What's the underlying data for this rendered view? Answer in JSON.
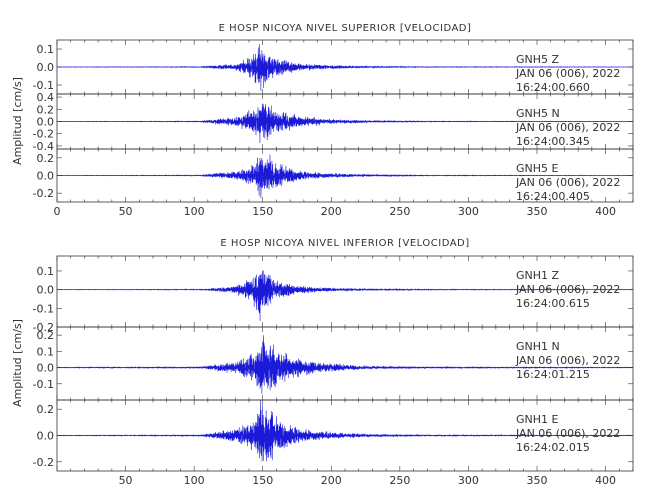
{
  "chart_data": [
    {
      "type": "line",
      "title": "E HOSP NICOYA NIVEL SUPERIOR [VELOCIDAD]",
      "ylabel": "Amplitud [cm/s]",
      "xlim": [
        0,
        420
      ],
      "x_ticks": [
        "0",
        "50",
        "100",
        "150",
        "200",
        "250",
        "300",
        "350",
        "400"
      ],
      "series": [
        {
          "channel": "GNH5  Z",
          "date": "JAN 06 (006), 2022",
          "time": "16:24:00.660",
          "color": "#1a1ad8",
          "ylim": [
            -0.15,
            0.15
          ],
          "y_ticks": [
            "0.1",
            "0.0",
            "-0.1"
          ],
          "y_tick_values": [
            0.1,
            0.0,
            -0.1
          ],
          "envelope": [
            {
              "t": 0,
              "a": 0.001
            },
            {
              "t": 105,
              "a": 0.002
            },
            {
              "t": 112,
              "a": 0.006
            },
            {
              "t": 130,
              "a": 0.02
            },
            {
              "t": 142,
              "a": 0.06
            },
            {
              "t": 148,
              "a": 0.15
            },
            {
              "t": 152,
              "a": 0.09
            },
            {
              "t": 160,
              "a": 0.05
            },
            {
              "t": 180,
              "a": 0.02
            },
            {
              "t": 200,
              "a": 0.01
            },
            {
              "t": 230,
              "a": 0.004
            },
            {
              "t": 270,
              "a": 0.002
            },
            {
              "t": 420,
              "a": 0.001
            }
          ]
        },
        {
          "channel": "GNH5  N",
          "date": "JAN 06 (006), 2022",
          "time": "16:24:00.345",
          "color": "#1a1ad8",
          "ylim": [
            -0.45,
            0.45
          ],
          "y_ticks": [
            "0.4",
            "0.2",
            "0.0",
            "-0.2",
            "-0.4"
          ],
          "y_tick_values": [
            0.4,
            0.2,
            0.0,
            -0.2,
            -0.4
          ],
          "envelope": [
            {
              "t": 0,
              "a": 0.003
            },
            {
              "t": 105,
              "a": 0.006
            },
            {
              "t": 112,
              "a": 0.03
            },
            {
              "t": 130,
              "a": 0.08
            },
            {
              "t": 145,
              "a": 0.2
            },
            {
              "t": 150,
              "a": 0.42
            },
            {
              "t": 155,
              "a": 0.3
            },
            {
              "t": 162,
              "a": 0.18
            },
            {
              "t": 180,
              "a": 0.08
            },
            {
              "t": 200,
              "a": 0.04
            },
            {
              "t": 230,
              "a": 0.015
            },
            {
              "t": 270,
              "a": 0.006
            },
            {
              "t": 420,
              "a": 0.003
            }
          ]
        },
        {
          "channel": "GNH5  E",
          "date": "JAN 06 (006), 2022",
          "time": "16:24:00.405",
          "color": "#1a1ad8",
          "ylim": [
            -0.3,
            0.3
          ],
          "y_ticks": [
            "0.2",
            "0.0",
            "-0.2"
          ],
          "y_tick_values": [
            0.2,
            0.0,
            -0.2
          ],
          "envelope": [
            {
              "t": 0,
              "a": 0.002
            },
            {
              "t": 105,
              "a": 0.004
            },
            {
              "t": 112,
              "a": 0.02
            },
            {
              "t": 130,
              "a": 0.05
            },
            {
              "t": 143,
              "a": 0.12
            },
            {
              "t": 149,
              "a": 0.28
            },
            {
              "t": 155,
              "a": 0.2
            },
            {
              "t": 162,
              "a": 0.12
            },
            {
              "t": 180,
              "a": 0.05
            },
            {
              "t": 200,
              "a": 0.025
            },
            {
              "t": 230,
              "a": 0.01
            },
            {
              "t": 270,
              "a": 0.004
            },
            {
              "t": 420,
              "a": 0.002
            }
          ]
        }
      ]
    },
    {
      "type": "line",
      "title": "E HOSP NICOYA NIVEL INFERIOR [VELOCIDAD]",
      "ylabel": "Amplitud [cm/s]",
      "xlim": [
        0,
        420
      ],
      "x_ticks": [
        "",
        "50",
        "100",
        "150",
        "200",
        "250",
        "300",
        "350",
        "400"
      ],
      "series": [
        {
          "channel": "GNH1  Z",
          "date": "JAN 06 (006), 2022",
          "time": "16:24:00.615",
          "color": "#1a1ad8",
          "ylim": [
            -0.2,
            0.18
          ],
          "y_ticks": [
            "0.1",
            "0.0",
            "-0.1",
            "-0.2"
          ],
          "y_tick_values": [
            0.1,
            0.0,
            -0.1,
            -0.2
          ],
          "envelope": [
            {
              "t": 0,
              "a": 0.001
            },
            {
              "t": 105,
              "a": 0.002
            },
            {
              "t": 112,
              "a": 0.006
            },
            {
              "t": 130,
              "a": 0.02
            },
            {
              "t": 142,
              "a": 0.07
            },
            {
              "t": 148,
              "a": 0.18
            },
            {
              "t": 152,
              "a": 0.1
            },
            {
              "t": 160,
              "a": 0.05
            },
            {
              "t": 180,
              "a": 0.02
            },
            {
              "t": 200,
              "a": 0.01
            },
            {
              "t": 230,
              "a": 0.004
            },
            {
              "t": 270,
              "a": 0.002
            },
            {
              "t": 420,
              "a": 0.001
            }
          ]
        },
        {
          "channel": "GNH1  N",
          "date": "JAN 06 (006), 2022",
          "time": "16:24:01.215",
          "color": "#1a1ad8",
          "ylim": [
            -0.2,
            0.25
          ],
          "y_ticks": [
            "0.2",
            "0.1",
            "0.0",
            "-0.1"
          ],
          "y_tick_values": [
            0.2,
            0.1,
            0.0,
            -0.1
          ],
          "envelope": [
            {
              "t": 0,
              "a": 0.002
            },
            {
              "t": 105,
              "a": 0.004
            },
            {
              "t": 112,
              "a": 0.015
            },
            {
              "t": 130,
              "a": 0.04
            },
            {
              "t": 145,
              "a": 0.1
            },
            {
              "t": 150,
              "a": 0.22
            },
            {
              "t": 155,
              "a": 0.16
            },
            {
              "t": 162,
              "a": 0.1
            },
            {
              "t": 180,
              "a": 0.05
            },
            {
              "t": 200,
              "a": 0.025
            },
            {
              "t": 230,
              "a": 0.01
            },
            {
              "t": 270,
              "a": 0.004
            },
            {
              "t": 420,
              "a": 0.002
            }
          ]
        },
        {
          "channel": "GNH1  E",
          "date": "JAN 06 (006), 2022",
          "time": "16:24:02.015",
          "color": "#1a1ad8",
          "ylim": [
            -0.27,
            0.27
          ],
          "y_ticks": [
            "0.2",
            "0.0",
            "-0.2"
          ],
          "y_tick_values": [
            0.2,
            0.0,
            -0.2
          ],
          "envelope": [
            {
              "t": 0,
              "a": 0.002
            },
            {
              "t": 105,
              "a": 0.004
            },
            {
              "t": 112,
              "a": 0.02
            },
            {
              "t": 130,
              "a": 0.05
            },
            {
              "t": 143,
              "a": 0.12
            },
            {
              "t": 149,
              "a": 0.26
            },
            {
              "t": 155,
              "a": 0.19
            },
            {
              "t": 162,
              "a": 0.12
            },
            {
              "t": 180,
              "a": 0.05
            },
            {
              "t": 200,
              "a": 0.025
            },
            {
              "t": 230,
              "a": 0.01
            },
            {
              "t": 270,
              "a": 0.004
            },
            {
              "t": 420,
              "a": 0.002
            }
          ]
        }
      ]
    }
  ]
}
